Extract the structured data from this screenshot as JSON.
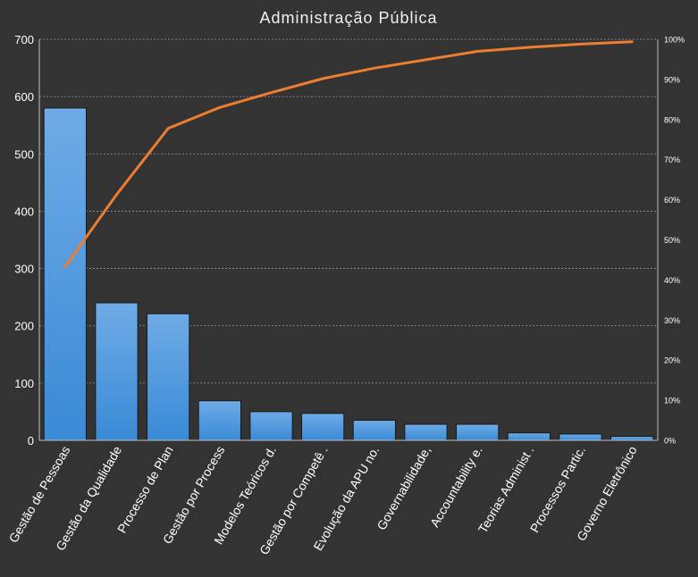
{
  "chart_data": {
    "type": "bar",
    "title": "Administração Pública",
    "categories": [
      "Gestão de Pessoas",
      "Gestão da Qualidade",
      "Processo de Plan",
      "Gestão por Process",
      "Modelos Teóricos d.",
      "Gestão por Competê .",
      "Evolução da APU no.",
      "Governabilidade,",
      "Accountability e.",
      "Teorias Administ .",
      "Processos Partic.",
      "Governo Eletrônico"
    ],
    "series": [
      {
        "type": "bar",
        "axis": "left",
        "values": [
          580,
          240,
          221,
          69,
          50,
          47,
          35,
          28,
          28,
          13,
          11,
          7
        ]
      },
      {
        "type": "line",
        "axis": "right",
        "values": [
          43.3,
          61.3,
          77.8,
          83.0,
          86.7,
          90.2,
          92.8,
          94.9,
          97.0,
          98.0,
          98.8,
          99.4
        ]
      }
    ],
    "ylim": [
      0,
      700
    ],
    "yticks": [
      0,
      100,
      200,
      300,
      400,
      500,
      600,
      700
    ],
    "y2lim": [
      0,
      100
    ],
    "y2ticks": [
      "0%",
      "10%",
      "20%",
      "30%",
      "40%",
      "50%",
      "60%",
      "70%",
      "80%",
      "90%",
      "100%"
    ],
    "grid": true,
    "colors": {
      "background": "#333333",
      "bar": "#3a8ad6",
      "bar_light": "#6fabe6",
      "bar_edge": "#1a1a1a",
      "line": "#ed7d31",
      "grid": "#9a9a9a",
      "axis": "#bfbfbf",
      "text": "#ffffff"
    }
  }
}
